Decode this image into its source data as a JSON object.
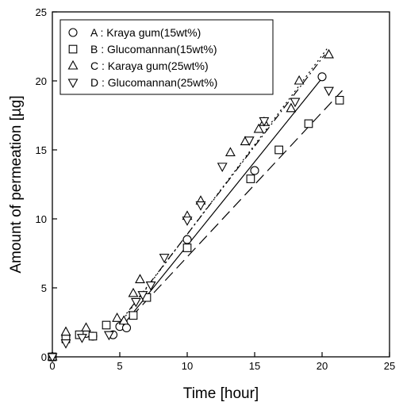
{
  "chart_data": {
    "type": "scatter",
    "xlabel": "Time [hour]",
    "ylabel": "Amount of permeation [µg]",
    "xlim": [
      0,
      25
    ],
    "ylim": [
      0,
      25
    ],
    "xticks": [
      "0",
      "5",
      "10",
      "15",
      "20",
      "25"
    ],
    "yticks": [
      "0",
      "5",
      "10",
      "15",
      "20",
      "25"
    ],
    "grid": false,
    "legend_position": "top-left",
    "series": [
      {
        "name": "A : Kraya gum(15wt%)",
        "marker": "circle",
        "x": [
          0,
          1,
          2.5,
          3,
          4.5,
          5,
          5.5,
          10,
          15,
          20
        ],
        "y": [
          0,
          1.5,
          1.7,
          1.5,
          1.6,
          2.2,
          2.1,
          8.5,
          13.5,
          20.3
        ],
        "fit": {
          "style": "solid",
          "x": [
            5,
            20
          ],
          "y": [
            2.0,
            20.2
          ]
        }
      },
      {
        "name": "B : Glucomannan(15wt%)",
        "marker": "square",
        "x": [
          0,
          1,
          2,
          3,
          4,
          6,
          7,
          10,
          14.7,
          16.8,
          19,
          21.3
        ],
        "y": [
          0,
          1.3,
          1.6,
          1.5,
          2.3,
          3.0,
          4.3,
          7.9,
          12.9,
          15.0,
          16.9,
          18.6
        ],
        "fit": {
          "style": "dash",
          "x": [
            5,
            21.5
          ],
          "y": [
            2.0,
            19.3
          ]
        }
      },
      {
        "name": "C : Karaya gum(25wt%)",
        "marker": "triangle-up",
        "x": [
          0,
          1,
          2.5,
          4.8,
          5.3,
          6,
          6.5,
          10,
          11,
          13.2,
          14.3,
          15.3,
          15.7,
          17.7,
          18.3,
          20.5
        ],
        "y": [
          0,
          1.8,
          2.1,
          2.8,
          2.6,
          4.6,
          5.6,
          10.2,
          11.3,
          14.8,
          15.6,
          16.5,
          17.0,
          18.0,
          20.0,
          21.9
        ],
        "fit": {
          "style": "dot",
          "x": [
            5,
            20.5
          ],
          "y": [
            2.4,
            22.5
          ]
        }
      },
      {
        "name": "D : Glucomannan(25wt%)",
        "marker": "triangle-down",
        "x": [
          0,
          1,
          2.2,
          4.2,
          6.2,
          6.7,
          7.3,
          8.3,
          10,
          11,
          12.6,
          14.6,
          15.7,
          18,
          20.5
        ],
        "y": [
          0,
          1.0,
          1.4,
          1.6,
          4.0,
          4.5,
          5.2,
          7.2,
          9.9,
          11.0,
          13.8,
          15.7,
          17.1,
          18.5,
          19.3
        ],
        "fit": {
          "style": "dashdot",
          "x": [
            5,
            20.2
          ],
          "y": [
            2.5,
            21.9
          ]
        }
      }
    ]
  }
}
